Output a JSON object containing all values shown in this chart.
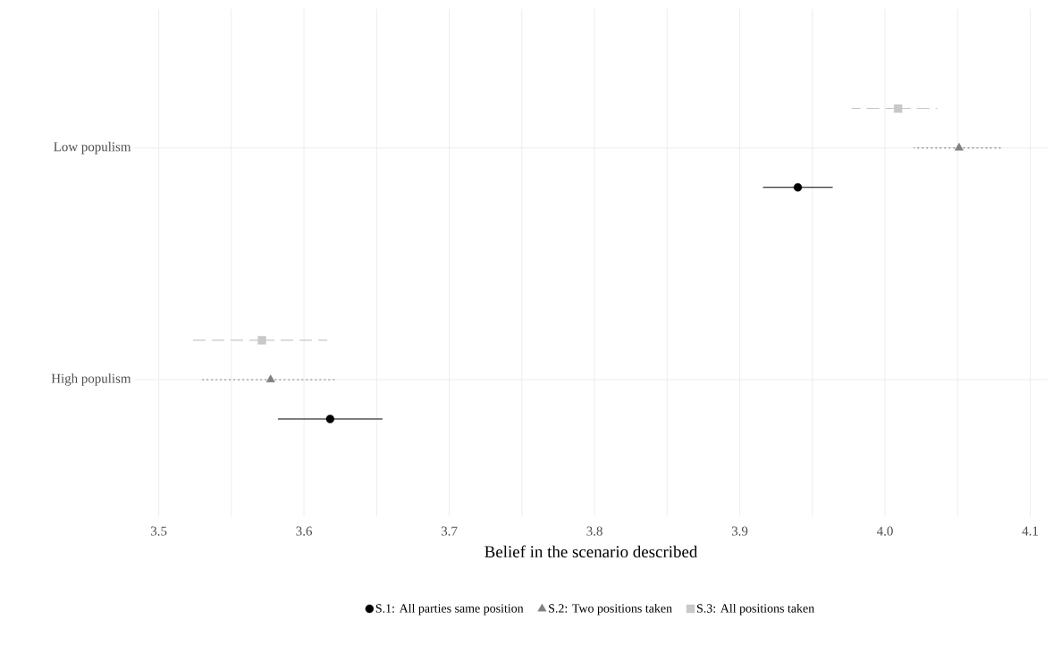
{
  "chart_data": {
    "type": "scatter",
    "orientation": "horizontal",
    "xlabel": "Belief in the scenario described",
    "categories": [
      "Low populism",
      "High populism"
    ],
    "series": [
      {
        "name": "S.1: All parties same position",
        "color": "#000000",
        "marker": "circle",
        "line_style": "solid",
        "values": [
          3.94,
          3.618
        ],
        "errors": [
          [
            3.916,
            3.964
          ],
          [
            3.582,
            3.654
          ]
        ]
      },
      {
        "name": "S.2: Two positions taken",
        "color": "#808080",
        "marker": "triangle",
        "line_style": "dotted",
        "values": [
          4.051,
          3.577
        ],
        "errors": [
          [
            4.02,
            4.08
          ],
          [
            3.528,
            3.621
          ]
        ]
      },
      {
        "name": "S.3: All positions taken",
        "color": "#c8c8c8",
        "marker": "square",
        "line_style": "dashed",
        "values": [
          4.009,
          3.571
        ],
        "errors": [
          [
            3.977,
            4.036
          ],
          [
            3.523,
            3.616
          ]
        ]
      }
    ],
    "xlim": [
      3.483,
      4.112
    ],
    "xticks": [
      3.5,
      {
        "value": 3.55,
        "label": null
      },
      3.6,
      {
        "value": 3.65,
        "label": null
      },
      3.7,
      {
        "value": 3.75,
        "label": null
      },
      3.8,
      {
        "value": 3.85,
        "label": null
      },
      3.9,
      {
        "value": 3.95,
        "label": null
      },
      {
        "value": 4.0,
        "label": "4.0"
      },
      {
        "value": 4.05,
        "label": null
      },
      4.1
    ],
    "grid": true,
    "legend": "bottom"
  }
}
